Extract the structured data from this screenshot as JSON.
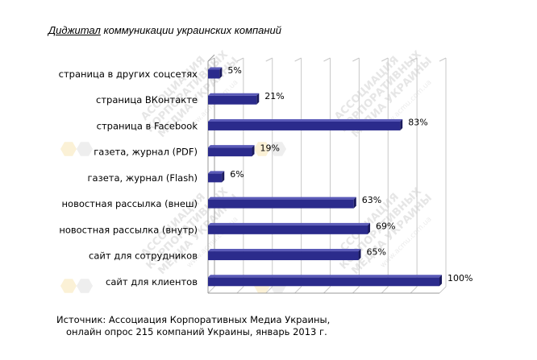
{
  "title_prefix": "Диджитал",
  "title_rest": " коммуникации украинских компаний",
  "source": {
    "line1": "Источник: Ассоциация Корпоративных Медиа Украины,",
    "line2": "онлайн опрос 215 компаний Украины, январь 2013 г."
  },
  "watermark": {
    "line1": "АССОЦИАЦИЯ",
    "line2": "КОРПОРАТИВНЫХ",
    "line3": "МЕДИА УКРАИНЫ",
    "url": "www.acmu.com.ua"
  },
  "colors": {
    "bar": "#2b2b8c",
    "bar_dark": "#1a1a5e",
    "bar_light": "#5a5ab8",
    "grid": "#c8c8c8"
  },
  "chart_data": {
    "type": "bar",
    "orientation": "horizontal",
    "categories": [
      "страница в других соцсетях",
      "страница ВКонтакте",
      "страница в Facebook",
      "газета, журнал (PDF)",
      "газета, журнал (Flash)",
      "новостная рассылка (внеш)",
      "новостная рассылка (внутр)",
      "сайт для сотрудников",
      "сайт для клиентов"
    ],
    "values": [
      5,
      21,
      83,
      19,
      6,
      63,
      69,
      65,
      100
    ],
    "value_labels": [
      "5%",
      "21%",
      "83%",
      "19%",
      "6%",
      "63%",
      "69%",
      "65%",
      "100%"
    ],
    "xlim": [
      0,
      100
    ],
    "grid": true,
    "legend": "none",
    "style": "3d"
  }
}
